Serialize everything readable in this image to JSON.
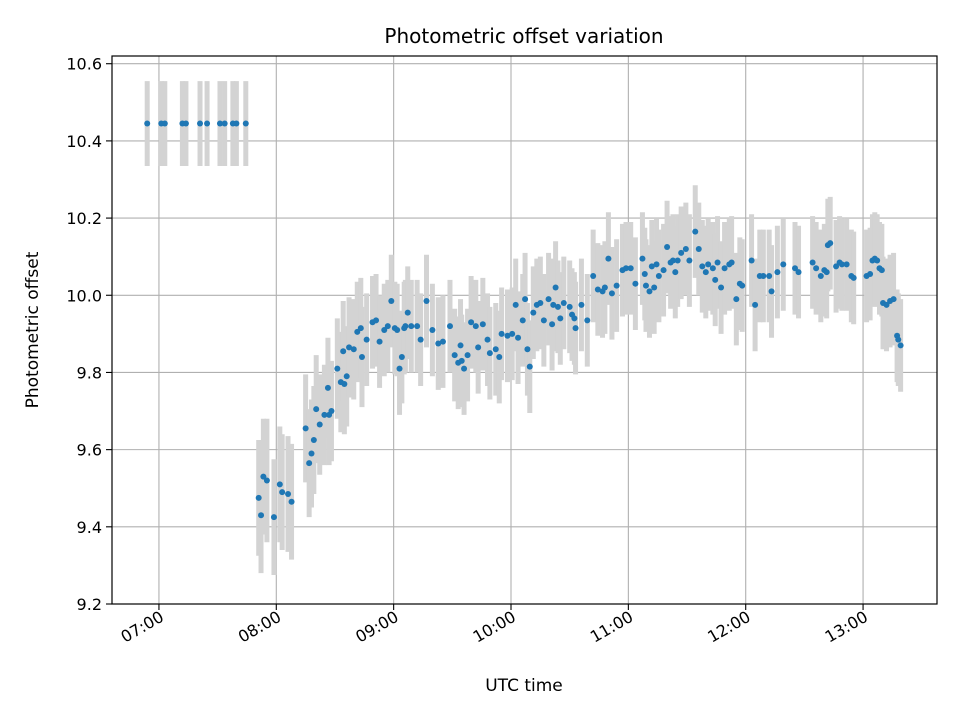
{
  "chart_data": {
    "type": "scatter",
    "title": "Photometric offset variation",
    "xlabel": "UTC time",
    "ylabel": "Photometric offset",
    "x_unit": "hours UTC",
    "xlim": [
      6.6,
      13.63
    ],
    "ylim": [
      9.2,
      10.62
    ],
    "x_ticks": [
      {
        "value": 7,
        "label": "07:00"
      },
      {
        "value": 8,
        "label": "08:00"
      },
      {
        "value": 9,
        "label": "09:00"
      },
      {
        "value": 10,
        "label": "10:00"
      },
      {
        "value": 11,
        "label": "11:00"
      },
      {
        "value": 12,
        "label": "12:00"
      },
      {
        "value": 13,
        "label": "13:00"
      }
    ],
    "y_ticks": [
      {
        "value": 9.2,
        "label": "9.2"
      },
      {
        "value": 9.4,
        "label": "9.4"
      },
      {
        "value": 9.6,
        "label": "9.6"
      },
      {
        "value": 9.8,
        "label": "9.8"
      },
      {
        "value": 10.0,
        "label": "10.0"
      },
      {
        "value": 10.2,
        "label": "10.2"
      },
      {
        "value": 10.4,
        "label": "10.4"
      },
      {
        "value": 10.6,
        "label": "10.6"
      }
    ],
    "grid": true,
    "colors": {
      "marker": "#1f77b4",
      "errorbar": "#d3d3d3",
      "grid": "#b0b0b0"
    },
    "series": [
      {
        "points": [
          [
            6.9,
            10.445,
            0.11
          ],
          [
            7.02,
            10.445,
            0.11
          ],
          [
            7.05,
            10.445,
            0.11
          ],
          [
            7.2,
            10.445,
            0.11
          ],
          [
            7.23,
            10.445,
            0.11
          ],
          [
            7.35,
            10.445,
            0.11
          ],
          [
            7.41,
            10.445,
            0.11
          ],
          [
            7.52,
            10.445,
            0.11
          ],
          [
            7.56,
            10.445,
            0.11
          ],
          [
            7.63,
            10.445,
            0.11
          ],
          [
            7.66,
            10.445,
            0.11
          ],
          [
            7.74,
            10.445,
            0.11
          ],
          [
            7.85,
            9.475,
            0.15
          ],
          [
            7.87,
            9.43,
            0.15
          ],
          [
            7.89,
            9.53,
            0.15
          ],
          [
            7.92,
            9.52,
            0.16
          ],
          [
            7.98,
            9.425,
            0.15
          ],
          [
            8.03,
            9.51,
            0.15
          ],
          [
            8.05,
            9.49,
            0.15
          ],
          [
            8.1,
            9.485,
            0.15
          ],
          [
            8.13,
            9.465,
            0.15
          ],
          [
            8.25,
            9.655,
            0.14
          ],
          [
            8.28,
            9.565,
            0.14
          ],
          [
            8.3,
            9.59,
            0.14
          ],
          [
            8.32,
            9.625,
            0.14
          ],
          [
            8.34,
            9.705,
            0.14
          ],
          [
            8.37,
            9.665,
            0.13
          ],
          [
            8.41,
            9.69,
            0.13
          ],
          [
            8.44,
            9.76,
            0.13
          ],
          [
            8.45,
            9.69,
            0.13
          ],
          [
            8.47,
            9.7,
            0.13
          ],
          [
            8.52,
            9.81,
            0.13
          ],
          [
            8.55,
            9.775,
            0.13
          ],
          [
            8.57,
            9.855,
            0.13
          ],
          [
            8.58,
            9.77,
            0.13
          ],
          [
            8.6,
            9.79,
            0.13
          ],
          [
            8.62,
            9.865,
            0.13
          ],
          [
            8.66,
            9.86,
            0.13
          ],
          [
            8.69,
            9.905,
            0.13
          ],
          [
            8.72,
            9.915,
            0.13
          ],
          [
            8.73,
            9.84,
            0.13
          ],
          [
            8.77,
            9.885,
            0.12
          ],
          [
            8.82,
            9.93,
            0.12
          ],
          [
            8.85,
            9.935,
            0.12
          ],
          [
            8.88,
            9.88,
            0.12
          ],
          [
            8.92,
            9.91,
            0.12
          ],
          [
            8.95,
            9.92,
            0.12
          ],
          [
            8.98,
            9.985,
            0.12
          ],
          [
            9.01,
            9.915,
            0.12
          ],
          [
            9.03,
            9.91,
            0.12
          ],
          [
            9.05,
            9.81,
            0.12
          ],
          [
            9.07,
            9.84,
            0.12
          ],
          [
            9.09,
            9.915,
            0.12
          ],
          [
            9.1,
            9.92,
            0.12
          ],
          [
            9.12,
            9.955,
            0.12
          ],
          [
            9.15,
            9.92,
            0.12
          ],
          [
            9.2,
            9.92,
            0.12
          ],
          [
            9.23,
            9.885,
            0.12
          ],
          [
            9.28,
            9.985,
            0.12
          ],
          [
            9.33,
            9.91,
            0.12
          ],
          [
            9.38,
            9.875,
            0.12
          ],
          [
            9.42,
            9.88,
            0.12
          ],
          [
            9.48,
            9.92,
            0.12
          ],
          [
            9.52,
            9.845,
            0.12
          ],
          [
            9.55,
            9.825,
            0.12
          ],
          [
            9.57,
            9.87,
            0.12
          ],
          [
            9.58,
            9.83,
            0.12
          ],
          [
            9.6,
            9.81,
            0.12
          ],
          [
            9.63,
            9.845,
            0.12
          ],
          [
            9.66,
            9.93,
            0.12
          ],
          [
            9.7,
            9.92,
            0.12
          ],
          [
            9.72,
            9.865,
            0.12
          ],
          [
            9.76,
            9.925,
            0.12
          ],
          [
            9.8,
            9.885,
            0.12
          ],
          [
            9.82,
            9.85,
            0.12
          ],
          [
            9.87,
            9.86,
            0.12
          ],
          [
            9.9,
            9.84,
            0.12
          ],
          [
            9.92,
            9.9,
            0.12
          ],
          [
            9.97,
            9.895,
            0.12
          ],
          [
            10.01,
            9.9,
            0.12
          ],
          [
            10.04,
            9.975,
            0.12
          ],
          [
            10.06,
            9.89,
            0.12
          ],
          [
            10.1,
            9.935,
            0.12
          ],
          [
            10.12,
            9.99,
            0.12
          ],
          [
            10.14,
            9.86,
            0.12
          ],
          [
            10.16,
            9.815,
            0.12
          ],
          [
            10.19,
            9.955,
            0.12
          ],
          [
            10.22,
            9.975,
            0.12
          ],
          [
            10.25,
            9.98,
            0.12
          ],
          [
            10.28,
            9.935,
            0.12
          ],
          [
            10.32,
            9.99,
            0.12
          ],
          [
            10.35,
            9.925,
            0.12
          ],
          [
            10.36,
            9.975,
            0.12
          ],
          [
            10.38,
            10.02,
            0.12
          ],
          [
            10.4,
            9.97,
            0.12
          ],
          [
            10.42,
            9.94,
            0.12
          ],
          [
            10.45,
            9.98,
            0.12
          ],
          [
            10.5,
            9.97,
            0.12
          ],
          [
            10.52,
            9.95,
            0.12
          ],
          [
            10.54,
            9.94,
            0.12
          ],
          [
            10.55,
            9.915,
            0.12
          ],
          [
            10.6,
            9.975,
            0.12
          ],
          [
            10.65,
            9.935,
            0.12
          ],
          [
            10.7,
            10.05,
            0.12
          ],
          [
            10.74,
            10.015,
            0.12
          ],
          [
            10.78,
            10.01,
            0.12
          ],
          [
            10.8,
            10.02,
            0.12
          ],
          [
            10.83,
            10.095,
            0.12
          ],
          [
            10.86,
            10.005,
            0.12
          ],
          [
            10.9,
            10.025,
            0.12
          ],
          [
            10.95,
            10.065,
            0.12
          ],
          [
            10.98,
            10.07,
            0.12
          ],
          [
            11.02,
            10.07,
            0.12
          ],
          [
            11.06,
            10.03,
            0.12
          ],
          [
            11.12,
            10.095,
            0.12
          ],
          [
            11.14,
            10.055,
            0.12
          ],
          [
            11.15,
            10.025,
            0.12
          ],
          [
            11.18,
            10.01,
            0.12
          ],
          [
            11.2,
            10.075,
            0.12
          ],
          [
            11.22,
            10.02,
            0.12
          ],
          [
            11.24,
            10.08,
            0.12
          ],
          [
            11.26,
            10.05,
            0.12
          ],
          [
            11.3,
            10.065,
            0.12
          ],
          [
            11.33,
            10.125,
            0.12
          ],
          [
            11.36,
            10.085,
            0.12
          ],
          [
            11.38,
            10.09,
            0.12
          ],
          [
            11.4,
            10.06,
            0.12
          ],
          [
            11.42,
            10.09,
            0.12
          ],
          [
            11.45,
            10.11,
            0.12
          ],
          [
            11.49,
            10.12,
            0.12
          ],
          [
            11.52,
            10.09,
            0.12
          ],
          [
            11.57,
            10.165,
            0.12
          ],
          [
            11.6,
            10.12,
            0.12
          ],
          [
            11.63,
            10.075,
            0.12
          ],
          [
            11.66,
            10.06,
            0.12
          ],
          [
            11.68,
            10.08,
            0.12
          ],
          [
            11.72,
            10.07,
            0.12
          ],
          [
            11.74,
            10.04,
            0.12
          ],
          [
            11.76,
            10.085,
            0.12
          ],
          [
            11.79,
            10.02,
            0.12
          ],
          [
            11.82,
            10.07,
            0.12
          ],
          [
            11.86,
            10.08,
            0.12
          ],
          [
            11.88,
            10.085,
            0.12
          ],
          [
            11.92,
            9.99,
            0.12
          ],
          [
            11.95,
            10.03,
            0.12
          ],
          [
            11.97,
            10.025,
            0.12
          ],
          [
            12.05,
            10.09,
            0.12
          ],
          [
            12.08,
            9.975,
            0.12
          ],
          [
            12.12,
            10.05,
            0.12
          ],
          [
            12.15,
            10.05,
            0.12
          ],
          [
            12.2,
            10.05,
            0.12
          ],
          [
            12.22,
            10.01,
            0.12
          ],
          [
            12.27,
            10.06,
            0.12
          ],
          [
            12.32,
            10.08,
            0.12
          ],
          [
            12.42,
            10.07,
            0.12
          ],
          [
            12.45,
            10.06,
            0.12
          ],
          [
            12.57,
            10.085,
            0.12
          ],
          [
            12.6,
            10.07,
            0.12
          ],
          [
            12.64,
            10.05,
            0.12
          ],
          [
            12.67,
            10.065,
            0.12
          ],
          [
            12.69,
            10.06,
            0.12
          ],
          [
            12.7,
            10.13,
            0.12
          ],
          [
            12.72,
            10.135,
            0.12
          ],
          [
            12.77,
            10.075,
            0.12
          ],
          [
            12.8,
            10.085,
            0.12
          ],
          [
            12.82,
            10.08,
            0.12
          ],
          [
            12.86,
            10.08,
            0.12
          ],
          [
            12.9,
            10.05,
            0.12
          ],
          [
            12.92,
            10.045,
            0.12
          ],
          [
            13.03,
            10.05,
            0.12
          ],
          [
            13.06,
            10.055,
            0.12
          ],
          [
            13.08,
            10.09,
            0.12
          ],
          [
            13.1,
            10.095,
            0.12
          ],
          [
            13.12,
            10.09,
            0.12
          ],
          [
            13.14,
            10.07,
            0.12
          ],
          [
            13.16,
            10.065,
            0.12
          ],
          [
            13.17,
            9.98,
            0.12
          ],
          [
            13.2,
            9.975,
            0.12
          ],
          [
            13.23,
            9.985,
            0.12
          ],
          [
            13.26,
            9.99,
            0.12
          ],
          [
            13.29,
            9.895,
            0.12
          ],
          [
            13.3,
            9.885,
            0.12
          ],
          [
            13.32,
            9.87,
            0.12
          ]
        ]
      }
    ]
  }
}
